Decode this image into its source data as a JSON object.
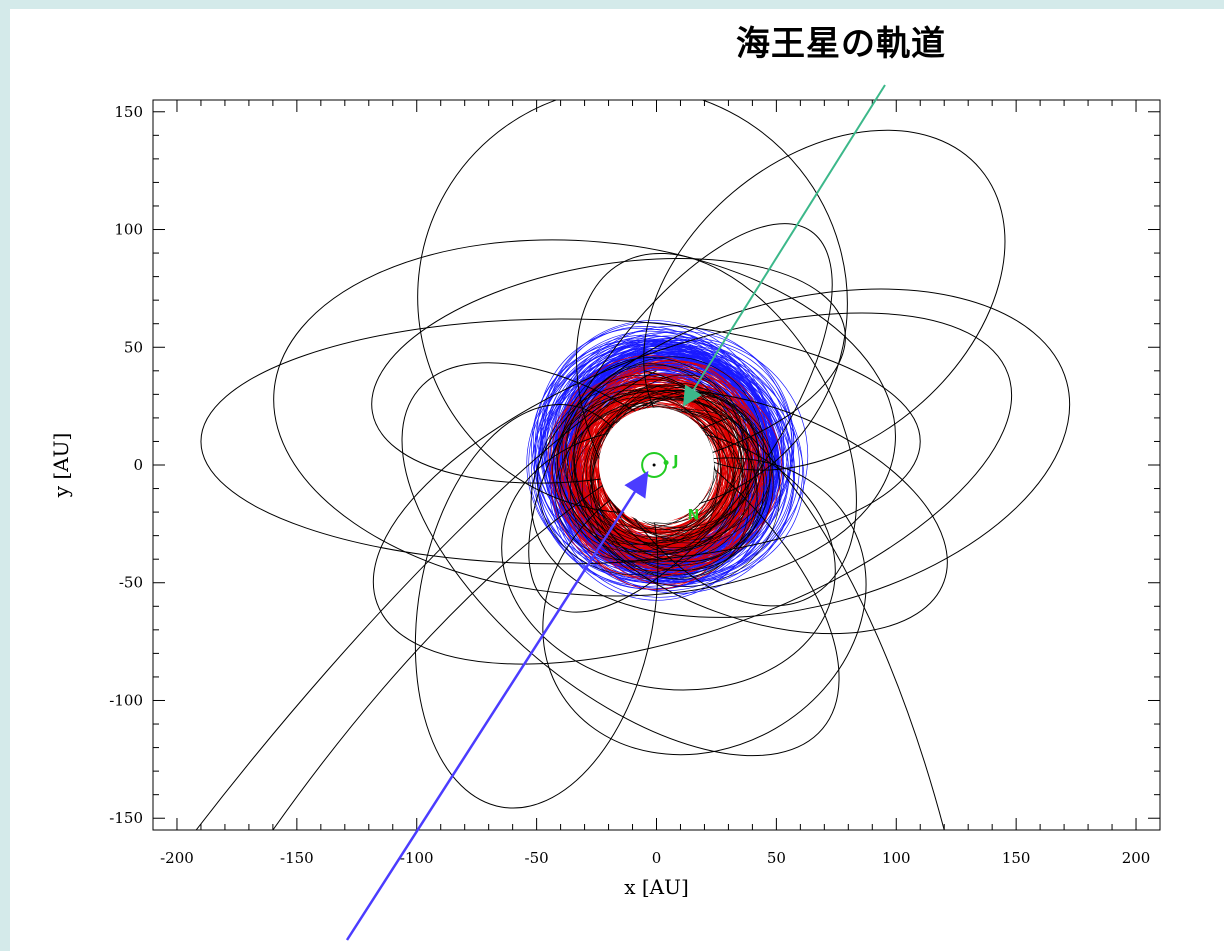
{
  "callout": {
    "neptune_orbit": "海王星の軌道"
  },
  "colors": {
    "scattered": "#000000",
    "red_cloud": "#e00000",
    "blue_cloud": "#1a1aff",
    "planets": "#22cc22",
    "green_arrow": "#3cb88a",
    "blue_arrow": "#4b3cff"
  },
  "chart_data": {
    "type": "line",
    "xlabel": "x [AU]",
    "ylabel": "y [AU]",
    "xlim": [
      -210,
      210
    ],
    "ylim": [
      -155,
      155
    ],
    "xticks": [
      -200,
      -150,
      -100,
      -50,
      0,
      50,
      100,
      150,
      200
    ],
    "yticks": [
      -150,
      -100,
      -50,
      0,
      50,
      100,
      150
    ],
    "planet_labels": [
      {
        "label": "J",
        "x": 7,
        "y": 2
      },
      {
        "label": "N",
        "x": 13,
        "y": -21
      }
    ],
    "scattered_orbits": [
      {
        "cx": -40,
        "cy": 10,
        "a": 150,
        "b": 52,
        "rot": 0
      },
      {
        "cx": -30,
        "cy": 20,
        "a": 130,
        "b": 75,
        "rot": -5
      },
      {
        "cx": 60,
        "cy": 5,
        "a": 115,
        "b": 65,
        "rot": 15
      },
      {
        "cx": -10,
        "cy": 70,
        "a": 90,
        "b": 90,
        "rot": -30
      },
      {
        "cx": 70,
        "cy": 70,
        "a": 85,
        "b": 60,
        "rot": 40
      },
      {
        "cx": -50,
        "cy": -60,
        "a": 85,
        "b": 50,
        "rot": 80
      },
      {
        "cx": 20,
        "cy": -60,
        "a": 70,
        "b": 60,
        "rot": 30
      },
      {
        "cx": 15,
        "cy": -10,
        "a": 140,
        "b": 60,
        "rot": 20
      },
      {
        "cx": -15,
        "cy": -40,
        "a": 110,
        "b": 55,
        "rot": -40
      },
      {
        "cx": 25,
        "cy": 15,
        "a": 80,
        "b": 50,
        "rot": -60
      },
      {
        "cx": 40,
        "cy": -20,
        "a": 85,
        "b": 45,
        "rot": -20
      },
      {
        "cx": -20,
        "cy": 40,
        "a": 100,
        "b": 45,
        "rot": 10
      },
      {
        "cx": 10,
        "cy": 20,
        "a": 95,
        "b": 40,
        "rot": 55
      },
      {
        "cx": 5,
        "cy": -40,
        "a": 70,
        "b": 55,
        "rot": -10
      }
    ],
    "escape_curves": [
      {
        "points": [
          [
            -192,
            -155
          ],
          [
            -120,
            -60
          ],
          [
            -40,
            20
          ],
          [
            0,
            40
          ]
        ]
      },
      {
        "points": [
          [
            -160,
            -155
          ],
          [
            -80,
            -40
          ],
          [
            -10,
            5
          ],
          [
            30,
            20
          ]
        ]
      },
      {
        "points": [
          [
            120,
            -155
          ],
          [
            90,
            -40
          ],
          [
            40,
            30
          ],
          [
            -5,
            40
          ]
        ]
      }
    ]
  }
}
